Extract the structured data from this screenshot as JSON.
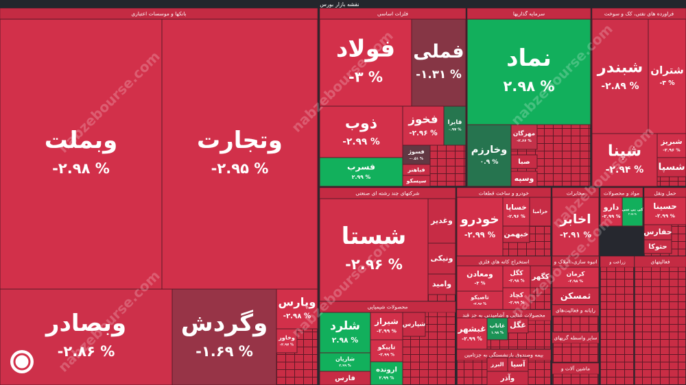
{
  "chart_data": {
    "type": "treemap",
    "title": "نقشه بازار بورس",
    "watermark": "nabzebourse.com",
    "color_range": [
      -3,
      3
    ],
    "negative_colors": [
      "#4a3a42",
      "#d3304a"
    ],
    "positive_colors": [
      "#2f5a49",
      "#12b05c"
    ],
    "tile_color": "#c72c45",
    "groups": [
      {
        "name": "بانکها و موسسات اعتباری",
        "tiles": [
          {
            "name": "وبملت",
            "value": -2.98,
            "value_label": "-۲.۹۸ %"
          },
          {
            "name": "وتجارت",
            "value": -2.95,
            "value_label": "-۲.۹۵ %"
          },
          {
            "name": "وبصادر",
            "value": -2.86,
            "value_label": "-۲.۸۶ %"
          },
          {
            "name": "وگردش",
            "value": -1.69,
            "value_label": "-۱.۶۹ %"
          },
          {
            "name": "وپارس",
            "value": -2.98,
            "value_label": "-۲.۹۸ %"
          },
          {
            "name": "وخاور",
            "value": -2.97,
            "value_label": "-۲.۹۷ %"
          }
        ]
      },
      {
        "name": "فلزات اساسی",
        "tiles": [
          {
            "name": "فولاد",
            "value": -3,
            "value_label": "-۳ %"
          },
          {
            "name": "فملی",
            "value": -1.31,
            "value_label": "-۱.۳۱ %"
          },
          {
            "name": "ذوب",
            "value": -2.99,
            "value_label": "-۲.۹۹ %"
          },
          {
            "name": "فخوز",
            "value": -2.96,
            "value_label": "-۲.۹۶ %"
          },
          {
            "name": "فایرا",
            "value": 0.97,
            "value_label": "۰.۹۷ %"
          },
          {
            "name": "فسرب",
            "value": 2.99,
            "value_label": "۲.۹۹ %"
          },
          {
            "name": "فسوژ",
            "value": -0.51,
            "value_label": "-۰.۵۱ %"
          },
          {
            "name": "فباهنر"
          },
          {
            "name": "سیسکو"
          }
        ]
      },
      {
        "name": "سرمایه گذاریها",
        "tiles": [
          {
            "name": "نماد",
            "value": 2.98,
            "value_label": "۲.۹۸ %"
          },
          {
            "name": "وخارزم",
            "value": 0.9,
            "value_label": "۰.۹ %"
          },
          {
            "name": "مهرگان",
            "value": -2.66,
            "value_label": "-۲.۶۶ %"
          },
          {
            "name": "صبا"
          },
          {
            "name": "وسپه"
          }
        ]
      },
      {
        "name": "فراورده های نفتی، کک و سوخت",
        "tiles": [
          {
            "name": "شبندر",
            "value": -2.89,
            "value_label": "-۲.۸۹ %"
          },
          {
            "name": "شتران",
            "value": -3,
            "value_label": "-۳ %"
          },
          {
            "name": "شپنا",
            "value": -2.94,
            "value_label": "-۲.۹۴ %"
          },
          {
            "name": "شبریز",
            "value": -2.96,
            "value_label": "-۲.۹۶ %"
          },
          {
            "name": "شسپا"
          }
        ]
      },
      {
        "name": "شرکتهای چند رشته ای صنعتی",
        "tiles": [
          {
            "name": "شستا",
            "value": -2.96,
            "value_label": "-۲.۹۶ %"
          },
          {
            "name": "وغدیر"
          },
          {
            "name": "ونیکی"
          },
          {
            "name": "وامید"
          }
        ]
      },
      {
        "name": "خودرو و ساخت قطعات",
        "tiles": [
          {
            "name": "خودرو",
            "value": -2.99,
            "value_label": "-۲.۹۹ %"
          },
          {
            "name": "خساپا",
            "value": -2.96,
            "value_label": "-۲.۹۶ %"
          },
          {
            "name": "خزامیا"
          },
          {
            "name": "خبهمن"
          }
        ]
      },
      {
        "name": "استخراج کانه های فلزی",
        "tiles": [
          {
            "name": "ومعادن",
            "value": -3,
            "value_label": "-۳ %"
          },
          {
            "name": "تاصیکو",
            "value": -2.96,
            "value_label": "-۲.۹۶ %"
          },
          {
            "name": "کگل",
            "value": -2.98,
            "value_label": "-۲.۹۸ %"
          },
          {
            "name": "کچاد",
            "value": -2.99,
            "value_label": "-۲.۹۹ %"
          },
          {
            "name": "کگهر"
          }
        ]
      },
      {
        "name": "محصولات شیمیایی",
        "tiles": [
          {
            "name": "شلرد",
            "value": 2.98,
            "value_label": "۲.۹۸ %"
          },
          {
            "name": "شاریان",
            "value": 2.99,
            "value_label": "۲.۹۹ %"
          },
          {
            "name": "فارس"
          },
          {
            "name": "شیراز",
            "value": -2.99,
            "value_label": "-۲.۹۹ %"
          },
          {
            "name": "تاپیکو",
            "value": -2.99,
            "value_label": "-۲.۹۹ %"
          },
          {
            "name": "ارونده",
            "value": 2.99,
            "value_label": "۲.۹۹ %"
          },
          {
            "name": "شپارس"
          }
        ]
      },
      {
        "name": "محصولات غذایی و آشامیدنی به جز قند",
        "tiles": [
          {
            "name": "غبشهر",
            "value": -2.99,
            "value_label": "-۲.۹۹ %"
          },
          {
            "name": "غاتاب",
            "value": 1.98,
            "value_label": "۱.۹۸ %"
          },
          {
            "name": "غگل"
          }
        ]
      },
      {
        "name": "بیمه وصندوق بازنشستگی به جزتامین",
        "tiles": [
          {
            "name": "البرز"
          },
          {
            "name": "آسیا"
          },
          {
            "name": "وآذر"
          }
        ]
      },
      {
        "name": "مخابرات",
        "tiles": [
          {
            "name": "اخابر",
            "value": -2.91,
            "value_label": "-۲.۹۱ %"
          }
        ]
      },
      {
        "name": "مواد و محصولات",
        "tiles": [
          {
            "name": "دارو",
            "value": -2.99,
            "value_label": "-۲.۹۹ %"
          },
          {
            "name": "کی بی سی",
            "value": 2.98,
            "value_label": "۲.۹۸ %"
          }
        ]
      },
      {
        "name": "حمل ونقل",
        "tiles": [
          {
            "name": "حسینا",
            "value": -2.99,
            "value_label": "-۲.۹۹ %"
          },
          {
            "name": "حفارس"
          },
          {
            "name": "حتوکا"
          }
        ]
      },
      {
        "name": "انبوه سازی، املاک و",
        "tiles": [
          {
            "name": "کرمان",
            "value": -2.98,
            "value_label": "-۲.۹۸ %"
          },
          {
            "name": "ثمسکن"
          }
        ]
      },
      {
        "name": "زراعت و",
        "tiles": []
      },
      {
        "name": "فعالیتهای",
        "tiles": []
      },
      {
        "name": "رایانه و فعالیت‌های",
        "tiles": []
      },
      {
        "name": "سایر واسطه گریهای",
        "tiles": []
      },
      {
        "name": "ماشین آلات و",
        "tiles": []
      }
    ]
  }
}
